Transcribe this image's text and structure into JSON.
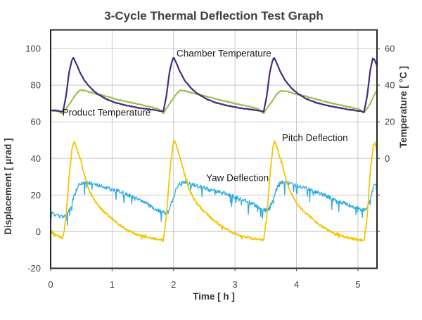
{
  "chart_data": {
    "type": "line",
    "title": "3-Cycle Thermal Deflection Test Graph",
    "xlabel": "Time [ h ]",
    "ylabel_left": "Displacement [ μrad ]",
    "ylabel_right": "Temperature [ °C ]",
    "xlim": [
      0,
      5.31
    ],
    "ylim_left": [
      -20,
      110.2
    ],
    "ylim_right": [
      -60,
      70.2
    ],
    "x_ticks": [
      0,
      1,
      2,
      3,
      4,
      5
    ],
    "y_ticks_left": [
      -20,
      0,
      20,
      40,
      60,
      80,
      100
    ],
    "y_ticks_right": [
      0,
      20,
      40,
      60
    ],
    "y_tick_marks_right": [
      60,
      40,
      20,
      0,
      -20,
      -40
    ],
    "grid": true,
    "grid_color": "#c8c8c8",
    "frame_color": "#262626",
    "series": [
      {
        "name": "Product Temperature",
        "yaxis": "right",
        "color": "#97bf4e",
        "width": 2.0,
        "noise": 0.25,
        "keypoints": [
          [
            0,
            26.0
          ],
          [
            0.12,
            25.8
          ],
          [
            0.2,
            24.6
          ],
          [
            0.3,
            29.5
          ],
          [
            0.4,
            34.5
          ],
          [
            0.47,
            37.2
          ],
          [
            0.55,
            37.0
          ],
          [
            0.65,
            36.0
          ],
          [
            0.8,
            34.8
          ],
          [
            1.0,
            33.0
          ],
          [
            1.2,
            31.3
          ],
          [
            1.4,
            29.8
          ],
          [
            1.6,
            28.3
          ],
          [
            1.75,
            27.0
          ],
          [
            1.833,
            24.7
          ],
          [
            1.93,
            29.5
          ],
          [
            2.03,
            34.5
          ],
          [
            2.1,
            37.2
          ],
          [
            2.18,
            37.0
          ],
          [
            2.28,
            36.0
          ],
          [
            2.43,
            34.8
          ],
          [
            2.63,
            33.0
          ],
          [
            2.83,
            31.3
          ],
          [
            3.03,
            29.8
          ],
          [
            3.23,
            28.3
          ],
          [
            3.38,
            27.0
          ],
          [
            3.466,
            24.7
          ],
          [
            3.566,
            29.5
          ],
          [
            3.666,
            34.5
          ],
          [
            3.736,
            37.0
          ],
          [
            3.816,
            36.8
          ],
          [
            3.916,
            35.8
          ],
          [
            4.066,
            34.6
          ],
          [
            4.266,
            32.8
          ],
          [
            4.466,
            31.0
          ],
          [
            4.666,
            29.5
          ],
          [
            4.866,
            28.0
          ],
          [
            5.02,
            26.8
          ],
          [
            5.1,
            24.8
          ],
          [
            5.2,
            30.0
          ],
          [
            5.28,
            35.5
          ],
          [
            5.31,
            37.3
          ]
        ]
      },
      {
        "name": "Chamber Temperature",
        "yaxis": "right",
        "color": "#4a2a7d",
        "width": 2.2,
        "noise": 0.15,
        "keypoints": [
          [
            0,
            26.3
          ],
          [
            0.1,
            26.2
          ],
          [
            0.15,
            25.8
          ],
          [
            0.2,
            25.5
          ],
          [
            0.25,
            34
          ],
          [
            0.3,
            47
          ],
          [
            0.345,
            53.5
          ],
          [
            0.37,
            55.2
          ],
          [
            0.42,
            51.5
          ],
          [
            0.47,
            47.5
          ],
          [
            0.55,
            42.5
          ],
          [
            0.65,
            38.5
          ],
          [
            0.75,
            35.5
          ],
          [
            0.9,
            32.5
          ],
          [
            1.05,
            30.5
          ],
          [
            1.25,
            28.8
          ],
          [
            1.45,
            27.5
          ],
          [
            1.65,
            26.6
          ],
          [
            1.78,
            26.0
          ],
          [
            1.833,
            25.6
          ],
          [
            1.883,
            34
          ],
          [
            1.933,
            47
          ],
          [
            1.978,
            53.5
          ],
          [
            2.003,
            55.2
          ],
          [
            2.053,
            51.5
          ],
          [
            2.103,
            47.5
          ],
          [
            2.183,
            42.5
          ],
          [
            2.283,
            38.5
          ],
          [
            2.383,
            35.5
          ],
          [
            2.533,
            32.5
          ],
          [
            2.683,
            30.5
          ],
          [
            2.883,
            28.8
          ],
          [
            3.083,
            27.5
          ],
          [
            3.283,
            26.6
          ],
          [
            3.41,
            26.0
          ],
          [
            3.466,
            25.6
          ],
          [
            3.516,
            34
          ],
          [
            3.566,
            47
          ],
          [
            3.611,
            53.5
          ],
          [
            3.636,
            55.0
          ],
          [
            3.686,
            51.5
          ],
          [
            3.736,
            47.5
          ],
          [
            3.816,
            42.5
          ],
          [
            3.916,
            38.5
          ],
          [
            4.016,
            35.5
          ],
          [
            4.166,
            32.5
          ],
          [
            4.316,
            30.5
          ],
          [
            4.516,
            28.8
          ],
          [
            4.716,
            27.5
          ],
          [
            4.916,
            26.4
          ],
          [
            5.05,
            25.8
          ],
          [
            5.1,
            25.3
          ],
          [
            5.15,
            34
          ],
          [
            5.2,
            48
          ],
          [
            5.24,
            54.5
          ],
          [
            5.27,
            54.0
          ],
          [
            5.31,
            50.5
          ]
        ]
      },
      {
        "name": "Yaw Deflection",
        "yaxis": "left",
        "color": "#2ba9e0",
        "width": 1.3,
        "noise": 1.1,
        "spike": {
          "prob": 0.07,
          "max": 6.5,
          "sign": "down"
        },
        "keypoints": [
          [
            0,
            10
          ],
          [
            0.05,
            9.5
          ],
          [
            0.1,
            9
          ],
          [
            0.17,
            8
          ],
          [
            0.25,
            8.5
          ],
          [
            0.3,
            11
          ],
          [
            0.35,
            16
          ],
          [
            0.4,
            21
          ],
          [
            0.45,
            25
          ],
          [
            0.5,
            26.5
          ],
          [
            0.55,
            27
          ],
          [
            0.62,
            26.5
          ],
          [
            0.7,
            26
          ],
          [
            0.8,
            25
          ],
          [
            0.9,
            24
          ],
          [
            1.0,
            23
          ],
          [
            1.1,
            22
          ],
          [
            1.2,
            21
          ],
          [
            1.3,
            19.5
          ],
          [
            1.4,
            18
          ],
          [
            1.5,
            16.5
          ],
          [
            1.6,
            14.5
          ],
          [
            1.7,
            12.5
          ],
          [
            1.78,
            11
          ],
          [
            1.833,
            10.5
          ],
          [
            1.883,
            10
          ],
          [
            1.93,
            12
          ],
          [
            1.98,
            17
          ],
          [
            2.03,
            22
          ],
          [
            2.08,
            25.5
          ],
          [
            2.13,
            27
          ],
          [
            2.2,
            27
          ],
          [
            2.28,
            26
          ],
          [
            2.38,
            25
          ],
          [
            2.48,
            24
          ],
          [
            2.58,
            23
          ],
          [
            2.7,
            22
          ],
          [
            2.82,
            21
          ],
          [
            2.95,
            19.5
          ],
          [
            3.08,
            18
          ],
          [
            3.2,
            16.5
          ],
          [
            3.3,
            15
          ],
          [
            3.4,
            13
          ],
          [
            3.466,
            12
          ],
          [
            3.52,
            11.5
          ],
          [
            3.56,
            13
          ],
          [
            3.61,
            17
          ],
          [
            3.66,
            22
          ],
          [
            3.71,
            25.5
          ],
          [
            3.76,
            27
          ],
          [
            3.83,
            27
          ],
          [
            3.91,
            26
          ],
          [
            4.01,
            25
          ],
          [
            4.11,
            24
          ],
          [
            4.21,
            23
          ],
          [
            4.33,
            21.5
          ],
          [
            4.45,
            20
          ],
          [
            4.58,
            18
          ],
          [
            4.7,
            16.5
          ],
          [
            4.82,
            15
          ],
          [
            4.94,
            13.5
          ],
          [
            5.03,
            12.5
          ],
          [
            5.1,
            12
          ],
          [
            5.15,
            13
          ],
          [
            5.2,
            18
          ],
          [
            5.25,
            24
          ],
          [
            5.29,
            26
          ],
          [
            5.31,
            26.5
          ]
        ]
      },
      {
        "name": "Pitch Deflection",
        "yaxis": "left",
        "color": "#f5c400",
        "width": 1.8,
        "noise": 0.6,
        "spike": {
          "prob": 0.05,
          "max": 2.2,
          "sign": "both"
        },
        "keypoints": [
          [
            0,
            -0.5
          ],
          [
            0.08,
            -1.5
          ],
          [
            0.15,
            -3.0
          ],
          [
            0.2,
            -3.5
          ],
          [
            0.25,
            8
          ],
          [
            0.3,
            30
          ],
          [
            0.35,
            46
          ],
          [
            0.38,
            49.5
          ],
          [
            0.42,
            46
          ],
          [
            0.46,
            42
          ],
          [
            0.5,
            38
          ],
          [
            0.54,
            32
          ],
          [
            0.58,
            27
          ],
          [
            0.64,
            22
          ],
          [
            0.7,
            18
          ],
          [
            0.78,
            14
          ],
          [
            0.86,
            11
          ],
          [
            0.95,
            8.5
          ],
          [
            1.05,
            5.5
          ],
          [
            1.15,
            3
          ],
          [
            1.25,
            1
          ],
          [
            1.35,
            -0.8
          ],
          [
            1.45,
            -2
          ],
          [
            1.55,
            -3
          ],
          [
            1.65,
            -3.6
          ],
          [
            1.75,
            -4.2
          ],
          [
            1.833,
            -4.5
          ],
          [
            1.883,
            8
          ],
          [
            1.933,
            30
          ],
          [
            1.983,
            46
          ],
          [
            2.013,
            50.5
          ],
          [
            2.05,
            46.5
          ],
          [
            2.09,
            42
          ],
          [
            2.13,
            38
          ],
          [
            2.17,
            32
          ],
          [
            2.21,
            27
          ],
          [
            2.27,
            22
          ],
          [
            2.33,
            18
          ],
          [
            2.41,
            14
          ],
          [
            2.49,
            11
          ],
          [
            2.58,
            8.5
          ],
          [
            2.68,
            5.5
          ],
          [
            2.78,
            3
          ],
          [
            2.88,
            1
          ],
          [
            2.98,
            -0.8
          ],
          [
            3.08,
            -2
          ],
          [
            3.18,
            -3
          ],
          [
            3.28,
            -3.6
          ],
          [
            3.38,
            -4.2
          ],
          [
            3.466,
            -4.8
          ],
          [
            3.516,
            8
          ],
          [
            3.566,
            30
          ],
          [
            3.616,
            46
          ],
          [
            3.646,
            49.5
          ],
          [
            3.68,
            46
          ],
          [
            3.72,
            42
          ],
          [
            3.76,
            38
          ],
          [
            3.8,
            32
          ],
          [
            3.84,
            27
          ],
          [
            3.9,
            22
          ],
          [
            3.96,
            18
          ],
          [
            4.04,
            14
          ],
          [
            4.12,
            11
          ],
          [
            4.21,
            8.5
          ],
          [
            4.31,
            5.5
          ],
          [
            4.41,
            3
          ],
          [
            4.51,
            1
          ],
          [
            4.61,
            -0.8
          ],
          [
            4.71,
            -2
          ],
          [
            4.81,
            -3
          ],
          [
            4.91,
            -3.8
          ],
          [
            5.01,
            -4.5
          ],
          [
            5.1,
            -5.0
          ],
          [
            5.15,
            8
          ],
          [
            5.2,
            32
          ],
          [
            5.25,
            47
          ],
          [
            5.28,
            48.5
          ],
          [
            5.31,
            44
          ]
        ]
      }
    ],
    "annotations": [
      {
        "text": "Chamber  Temperature",
        "t": 2.82,
        "v": 97.3
      },
      {
        "text": "Product Temperature",
        "t": 0.91,
        "v": 65.0
      },
      {
        "text": "Pitch Deflection",
        "t": 4.3,
        "v": 51.2
      },
      {
        "text": "Yaw Deflection",
        "t": 3.04,
        "v": 29.3
      }
    ]
  }
}
